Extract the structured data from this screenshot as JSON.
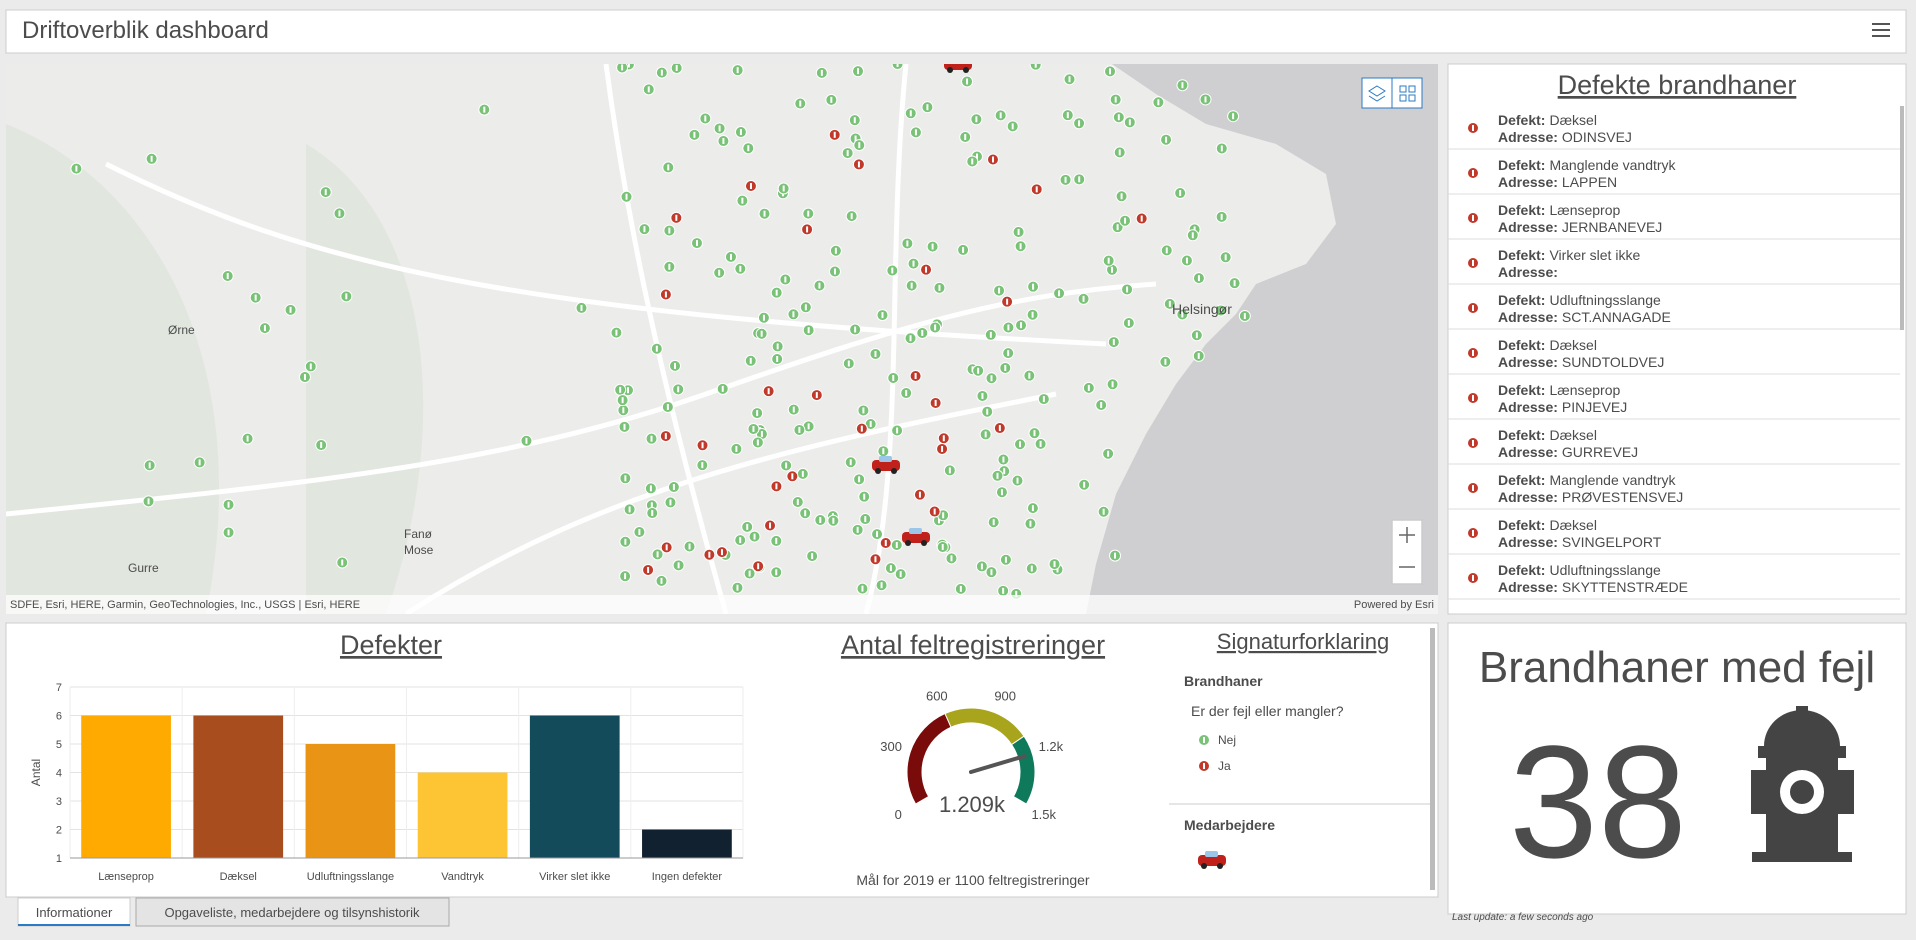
{
  "header": {
    "title": "Driftoverblik dashboard"
  },
  "map": {
    "attribution": "SDFE, Esri, HERE, Garmin, GeoTechnologies, Inc., USGS | Esri, HERE",
    "powered_by": "Powered by Esri",
    "places": [
      "Ørne",
      "Gurre",
      "Fanø",
      "Mose",
      "Helsingør"
    ]
  },
  "list": {
    "title": "Defekte brandhaner",
    "defekt_label": "Defekt:",
    "adresse_label": "Adresse:",
    "items": [
      {
        "defekt": "Dæksel",
        "adresse": "ODINSVEJ"
      },
      {
        "defekt": "Manglende vandtryk",
        "adresse": "LAPPEN"
      },
      {
        "defekt": "Lænseprop",
        "adresse": "JERNBANEVEJ"
      },
      {
        "defekt": "Virker slet ikke"
      },
      {
        "defekt": "Udluftningsslange",
        "adresse": "SCT.ANNAGADE"
      },
      {
        "defekt": "Dæksel",
        "adresse": "SUNDTOLDVEJ"
      },
      {
        "defekt": "Lænseprop",
        "adresse": "PINJEVEJ"
      },
      {
        "defekt": "Dæksel",
        "adresse": "GURREVEJ"
      },
      {
        "defekt": "Manglende vandtryk",
        "adresse": "PRØVESTENSVEJ"
      },
      {
        "defekt": "Dæksel",
        "adresse": "SVINGELPORT"
      },
      {
        "defekt": "Udluftningsslange",
        "adresse": "SKYTTENSTRÆDE"
      }
    ]
  },
  "chart_data": [
    {
      "type": "bar",
      "title": "Defekter",
      "y_label": "Antal",
      "categories": [
        "Lænseprop",
        "Dæksel",
        "Udluftningsslange",
        "Vandtryk",
        "Virker slet ikke",
        "Ingen defekter"
      ],
      "values": [
        6,
        6,
        5,
        4,
        6,
        2
      ],
      "colors": [
        "#ffaa00",
        "#a84e1e",
        "#ea9416",
        "#fdc534",
        "#144b5a",
        "#12212f"
      ],
      "ylim": [
        1,
        7
      ],
      "yticks": [
        1,
        2,
        3,
        4,
        5,
        6,
        7
      ],
      "grid": true
    },
    {
      "type": "gauge",
      "title": "Antal feltregistreringer",
      "value": 1209,
      "value_label": "1.209k",
      "xlim": [
        0,
        1500
      ],
      "xticks": [
        0,
        300,
        600,
        900,
        {
          "value": 1200,
          "label": "1.2k"
        },
        {
          "value": 1500,
          "label": "1.5k"
        }
      ],
      "bands": [
        {
          "from": 0,
          "to": 600,
          "color": "#7a0b0b"
        },
        {
          "from": 600,
          "to": 1100,
          "color": "#a8a41c"
        },
        {
          "from": 1100,
          "to": 1500,
          "color": "#0f7a5b"
        }
      ],
      "note": "Mål for 2019 er 1100 feltregistreringer"
    }
  ],
  "legend": {
    "title": "Signaturforklaring",
    "group": "Brandhaner",
    "question": "Er der fejl eller mangler?",
    "items": [
      "Nej",
      "Ja"
    ],
    "staff": "Medarbejdere"
  },
  "indicator": {
    "title": "Brandhaner med fejl",
    "value": 38,
    "last_update": "Last update: a few seconds ago"
  },
  "tabs": [
    "Informationer",
    "Opgaveliste, medarbejdere og tilsynshistorik"
  ]
}
